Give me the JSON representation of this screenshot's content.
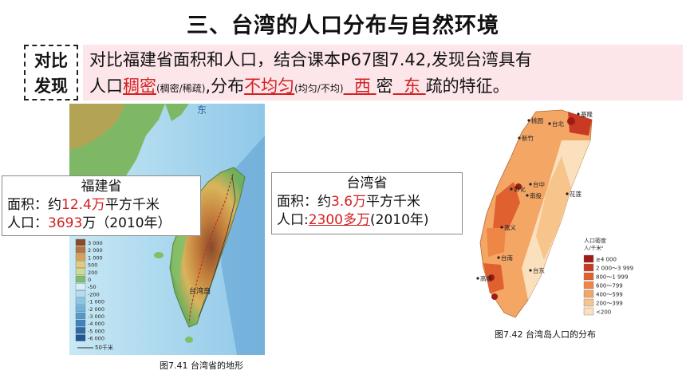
{
  "title": "三、台湾的人口分布与自然环境",
  "tag": {
    "line1": "对比",
    "line2": "发现"
  },
  "statement": {
    "line1": "对比福建省面积和人口，结合课本P67图7.42,发现台湾具有",
    "line2_a": "人口",
    "answer_density": "稠密",
    "hint_density": "(稠密/稀疏)",
    "line2_b": ",分布",
    "answer_distribution": "不均匀",
    "hint_distribution": "(均匀/不均)",
    "answer_west": "西",
    "mid_word": "密",
    "answer_east": "东",
    "line2_c": "疏的特征。"
  },
  "fujian": {
    "name": "福建省",
    "area_label": "面积：约",
    "area_value": "12.4万",
    "area_unit": "平方千米",
    "pop_label": "人口：",
    "pop_value": "3693",
    "pop_unit": "万（2010年）"
  },
  "taiwan": {
    "name": "台湾省",
    "area_label": "面积：约",
    "area_value": "3.6万",
    "area_unit": "平方千米",
    "pop_label": "人口:",
    "pop_value": "2300多万",
    "pop_unit": "(2010年)"
  },
  "terrain_map": {
    "caption": "图7.41 台湾省的地形",
    "labels": {
      "sea_east": "东",
      "island_name": "台湾岛",
      "scale": "50千米"
    },
    "legend": [
      "3 000",
      "2 000",
      "1 000",
      "500",
      "200",
      "0",
      "-50",
      "-200",
      "-1 000",
      "-2 000",
      "-3 000",
      "-4 000",
      "-5 000",
      "-6 000"
    ],
    "legend_colors": [
      "#8a4a2a",
      "#b8743a",
      "#d9a257",
      "#e8c878",
      "#cfdc8a",
      "#7fbf6a",
      "#d6eef8",
      "#b3dcf0",
      "#8cc6e6",
      "#6fb3dc",
      "#5499cc",
      "#3f82bc",
      "#2e6aa8",
      "#215490"
    ]
  },
  "density_map": {
    "caption": "图7.42 台湾岛人口的分布",
    "cities": [
      "基隆",
      "台北",
      "桃园",
      "新竹",
      "台中",
      "彰化",
      "南投",
      "嘉义",
      "花莲",
      "台南",
      "台东",
      "高雄"
    ],
    "legend_title": "人口密度",
    "legend_unit": "人/千米²",
    "legend": [
      "≥4 000",
      "2 000～3 999",
      "800～1 999",
      "600～799",
      "400～599",
      "200～399",
      "<200"
    ],
    "legend_colors": [
      "#9e1b16",
      "#c83a24",
      "#e0602f",
      "#ee8646",
      "#f4a665",
      "#f7c48c",
      "#fae0bd"
    ]
  }
}
